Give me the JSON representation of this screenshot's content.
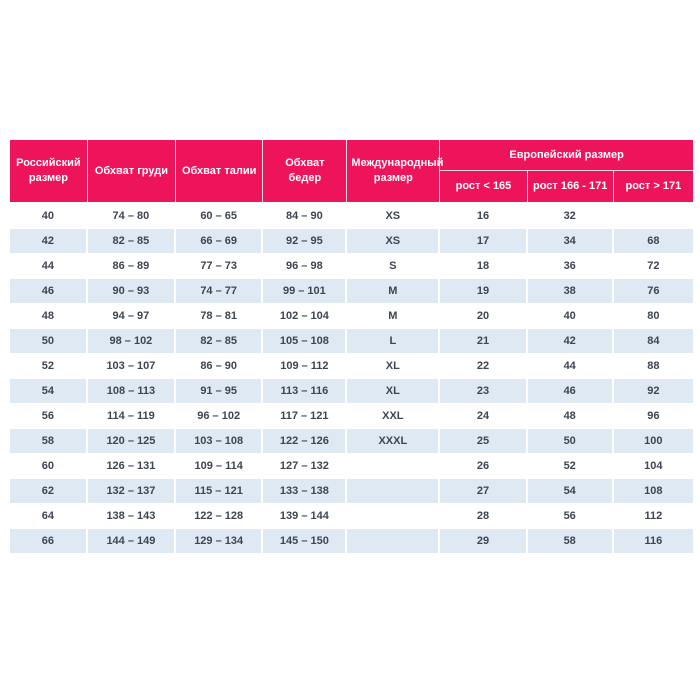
{
  "colors": {
    "header_bg": "#ED145B",
    "header_text": "#FFFFFF",
    "row_alt_bg": "#DFE9F4",
    "body_text": "#3E4553",
    "page_bg": "#FFFFFF"
  },
  "table": {
    "header": {
      "russian_size": "Российский размер",
      "chest": "Обхват груди",
      "waist": "Обхват талии",
      "hips": "Обхват бедер",
      "international_size": "Международный размер",
      "european_size": "Европейский размер",
      "height_lt_165": "рост < 165",
      "height_166_171": "рост 166 - 171",
      "height_gt_171": "рост > 171"
    },
    "rows": [
      [
        "40",
        "74 – 80",
        "60 – 65",
        "84 – 90",
        "XS",
        "16",
        "32",
        ""
      ],
      [
        "42",
        "82 – 85",
        "66 – 69",
        "92 – 95",
        "XS",
        "17",
        "34",
        "68"
      ],
      [
        "44",
        "86 – 89",
        "77 – 73",
        "96 – 98",
        "S",
        "18",
        "36",
        "72"
      ],
      [
        "46",
        "90 – 93",
        "74 – 77",
        "99 – 101",
        "M",
        "19",
        "38",
        "76"
      ],
      [
        "48",
        "94 – 97",
        "78 – 81",
        "102 – 104",
        "M",
        "20",
        "40",
        "80"
      ],
      [
        "50",
        "98 – 102",
        "82 – 85",
        "105 – 108",
        "L",
        "21",
        "42",
        "84"
      ],
      [
        "52",
        "103 – 107",
        "86 – 90",
        "109 – 112",
        "XL",
        "22",
        "44",
        "88"
      ],
      [
        "54",
        "108 – 113",
        "91 – 95",
        "113 – 116",
        "XL",
        "23",
        "46",
        "92"
      ],
      [
        "56",
        "114 – 119",
        "96 – 102",
        "117 – 121",
        "XXL",
        "24",
        "48",
        "96"
      ],
      [
        "58",
        "120 – 125",
        "103 – 108",
        "122 – 126",
        "XXXL",
        "25",
        "50",
        "100"
      ],
      [
        "60",
        "126 – 131",
        "109 – 114",
        "127 – 132",
        "",
        "26",
        "52",
        "104"
      ],
      [
        "62",
        "132 – 137",
        "115 – 121",
        "133 – 138",
        "",
        "27",
        "54",
        "108"
      ],
      [
        "64",
        "138 – 143",
        "122 – 128",
        "139 – 144",
        "",
        "28",
        "56",
        "112"
      ],
      [
        "66",
        "144 – 149",
        "129 – 134",
        "145 – 150",
        "",
        "29",
        "58",
        "116"
      ]
    ]
  }
}
